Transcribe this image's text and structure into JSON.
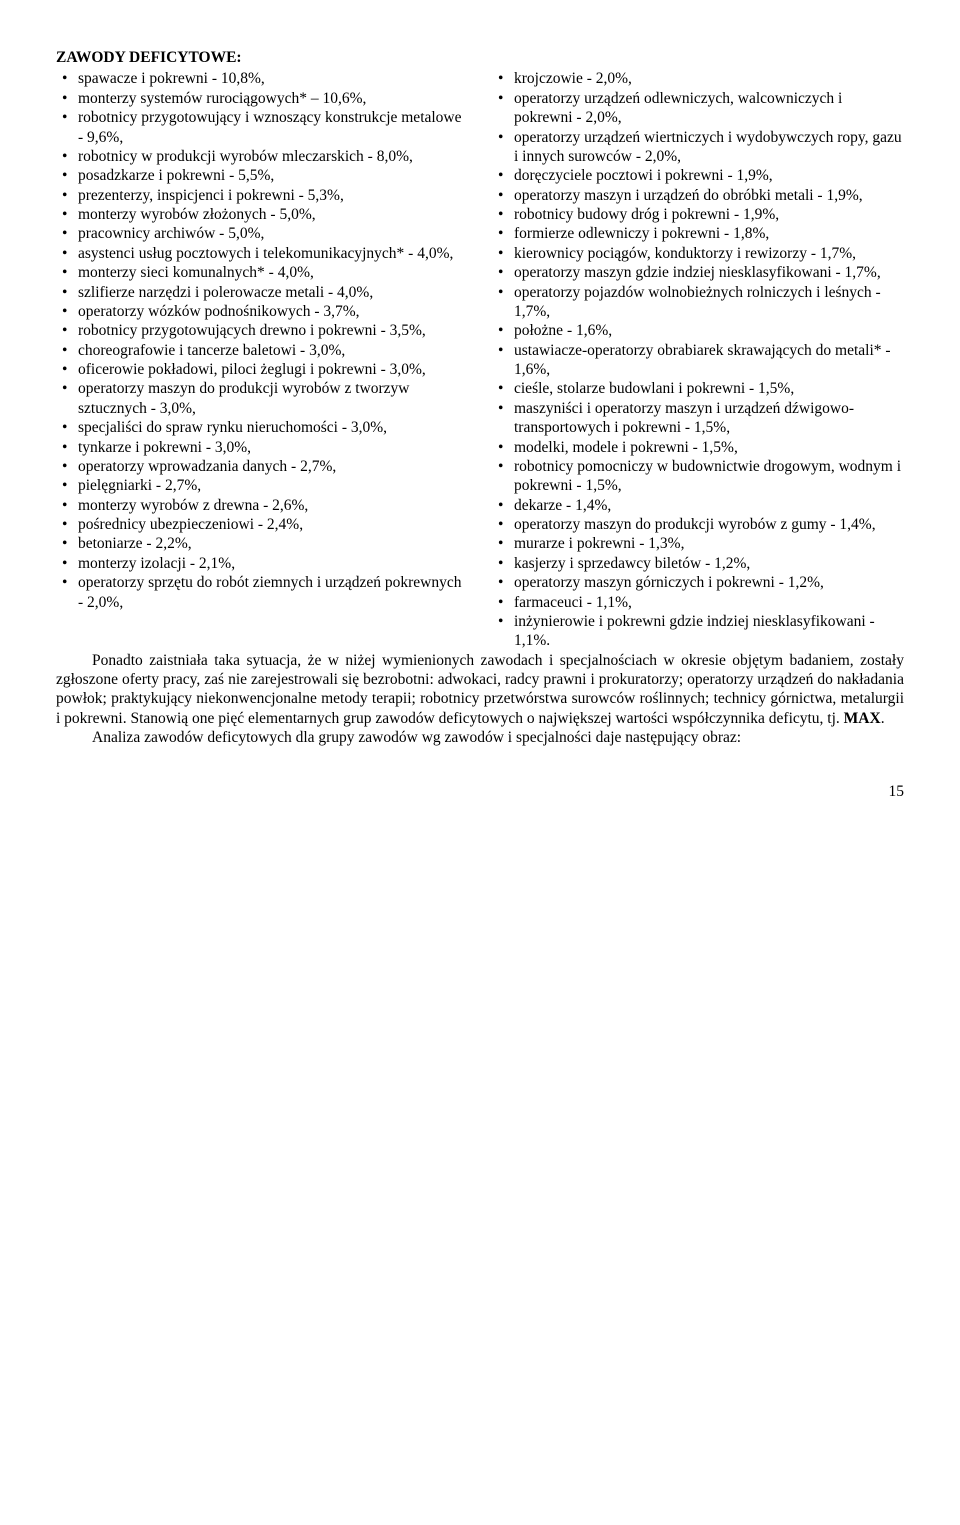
{
  "title": "ZAWODY DEFICYTOWE:",
  "left_items": [
    "spawacze i pokrewni - 10,8%,",
    "monterzy systemów rurociągowych* – 10,6%,",
    "robotnicy przygotowujący i wznoszący konstrukcje metalowe - 9,6%,",
    "robotnicy w produkcji wyrobów mleczarskich - 8,0%,",
    "posadzkarze i pokrewni - 5,5%,",
    "prezenterzy, inspicjenci i pokrewni - 5,3%,",
    "monterzy wyrobów złożonych - 5,0%,",
    "pracownicy archiwów - 5,0%,",
    "asystenci usług pocztowych i telekomunikacyjnych* - 4,0%,",
    "monterzy sieci komunalnych* - 4,0%,",
    "szlifierze narzędzi i polerowacze metali - 4,0%,",
    "operatorzy wózków podnośnikowych - 3,7%,",
    "robotnicy przygotowujących drewno i pokrewni - 3,5%,",
    "choreografowie i tancerze baletowi - 3,0%,",
    "oficerowie pokładowi, piloci żeglugi i pokrewni - 3,0%,",
    "operatorzy maszyn do produkcji wyrobów z tworzyw sztucznych - 3,0%,",
    "specjaliści do spraw rynku nieruchomości - 3,0%,",
    "tynkarze i pokrewni - 3,0%,",
    "operatorzy wprowadzania danych - 2,7%,",
    "pielęgniarki - 2,7%,",
    "monterzy wyrobów z drewna - 2,6%,",
    "pośrednicy ubezpieczeniowi - 2,4%,",
    "betoniarze - 2,2%,",
    "monterzy izolacji - 2,1%,",
    "operatorzy sprzętu do robót ziemnych i urządzeń pokrewnych - 2,0%,"
  ],
  "right_items": [
    "krojczowie - 2,0%,",
    "operatorzy urządzeń odlewniczych, walcowniczych i pokrewni - 2,0%,",
    "operatorzy urządzeń wiertniczych i wydobywczych ropy, gazu i innych surowców - 2,0%,",
    "doręczyciele pocztowi i pokrewni - 1,9%,",
    "operatorzy maszyn i urządzeń do obróbki metali - 1,9%,",
    "robotnicy budowy dróg i pokrewni - 1,9%,",
    "formierze odlewniczy i pokrewni - 1,8%,",
    "kierownicy pociągów, konduktorzy i rewizorzy - 1,7%,",
    "operatorzy maszyn gdzie indziej niesklasyfikowani - 1,7%,",
    "operatorzy pojazdów wolnobieżnych rolniczych i leśnych - 1,7%,",
    "położne - 1,6%,",
    "ustawiacze-operatorzy obrabiarek skrawających do metali* - 1,6%,",
    "cieśle, stolarze budowlani i pokrewni - 1,5%,",
    "maszyniści i operatorzy maszyn i urządzeń dźwigowo-transportowych i pokrewni - 1,5%,",
    "modelki, modele i pokrewni - 1,5%,",
    "robotnicy pomocniczy w budownictwie drogowym, wodnym i pokrewni - 1,5%,",
    "dekarze - 1,4%,",
    "operatorzy maszyn do produkcji wyrobów z gumy - 1,4%,",
    "murarze i pokrewni - 1,3%,",
    "kasjerzy i sprzedawcy biletów - 1,2%,",
    "operatorzy maszyn górniczych i pokrewni - 1,2%,",
    "farmaceuci - 1,1%,",
    "inżynierowie i pokrewni gdzie indziej niesklasyfikowani - 1,1%."
  ],
  "para1_a": "Ponadto zaistniała taka sytuacja, że w niżej wymienionych zawodach i specjalnościach w okresie objętym badaniem, zostały zgłoszone oferty pracy, zaś nie zarejestrowali się bezrobotni: adwokaci, radcy prawni i prokuratorzy; operatorzy urządzeń do nakładania powłok; praktykujący niekonwencjonalne metody terapii; robotnicy przetwórstwa surowców roślinnych; technicy górnictwa, metalurgii i pokrewni. Stanowią one pięć elementarnych grup zawodów deficytowych o największej wartości współczynnika deficytu, tj. ",
  "para1_b": "MAX",
  "para1_c": ".",
  "para2": "Analiza zawodów deficytowych dla grupy zawodów wg zawodów i specjalności daje następujący obraz:",
  "page_number": "15"
}
